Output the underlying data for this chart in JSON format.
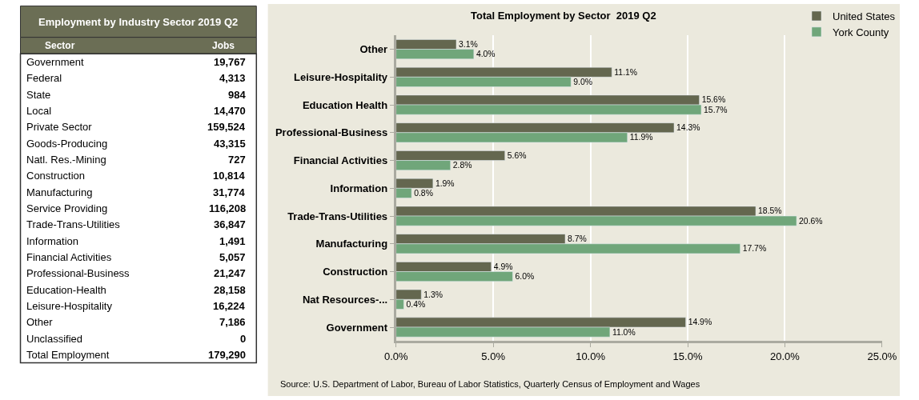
{
  "chart_data": [
    {
      "type": "other",
      "title": "Employment by Industry Sector 2019 Q2",
      "annotations": [
        "Sector",
        "Jobs"
      ],
      "value_labels": [
        "19,767",
        "4,313",
        "984",
        "14,470",
        "159,524",
        "43,315",
        "727",
        "10,814",
        "31,774",
        "116,208",
        "36,847",
        "1,491",
        "5,057",
        "21,247",
        "28,158",
        "16,224",
        "7,186",
        "0",
        "179,290"
      ],
      "categories": [
        "Government",
        "Federal",
        "State",
        "Local",
        "Private Sector",
        "Goods-Producing",
        "Natl. Res.-Mining",
        "Construction",
        "Manufacturing",
        "Service Providing",
        "Trade-Trans-Utilities",
        "Information",
        "Financial Activities",
        "Professional-Business",
        "Education-Health",
        "Leisure-Hospitality",
        "Other",
        "Unclassified",
        "Total Employment"
      ]
    },
    {
      "type": "bar",
      "orientation": "horizontal",
      "title": "Total Employment by Sector  2019 Q2",
      "categories": [
        "Other",
        "Leisure-Hospitality",
        "Education Health",
        "Professional-Business",
        "Financial Activities",
        "Information",
        "Trade-Trans-Utilities",
        "Manufacturing",
        "Construction",
        "Nat Resources-...",
        "Government"
      ],
      "series": [
        {
          "name": "United States",
          "color": "#64674f",
          "values": [
            3.1,
            11.1,
            15.6,
            14.3,
            5.6,
            1.9,
            18.5,
            8.7,
            4.9,
            1.3,
            14.9
          ],
          "value_labels": [
            "3.1%",
            "11.1%",
            "15.6%",
            "14.3%",
            "5.6%",
            "1.9%",
            "18.5%",
            "8.7%",
            "4.9%",
            "1.3%",
            "14.9%"
          ]
        },
        {
          "name": "York County",
          "color": "#70a67a",
          "values": [
            4.0,
            9.0,
            15.7,
            11.9,
            2.8,
            0.8,
            20.6,
            17.7,
            6.0,
            0.4,
            11.0
          ],
          "value_labels": [
            "4.0%",
            "9.0%",
            "15.7%",
            "11.9%",
            "2.8%",
            "0.8%",
            "20.6%",
            "17.7%",
            "6.0%",
            "0.4%",
            "11.0%"
          ]
        }
      ],
      "xlim": [
        0,
        25
      ],
      "xticks": [
        {
          "value": 0,
          "label": "0.0%"
        },
        {
          "value": 5,
          "label": "5.0%"
        },
        {
          "value": 10,
          "label": "10.0%"
        },
        {
          "value": 15,
          "label": "15.0%"
        },
        {
          "value": 20,
          "label": "20.0%"
        },
        {
          "value": 25,
          "label": "25.0%"
        }
      ],
      "grid": "x",
      "legend": "top right",
      "annotations": [
        "Source: U.S. Department of Labor, Bureau of Labor Statistics, Quarterly Census of Employment and Wages"
      ]
    }
  ]
}
